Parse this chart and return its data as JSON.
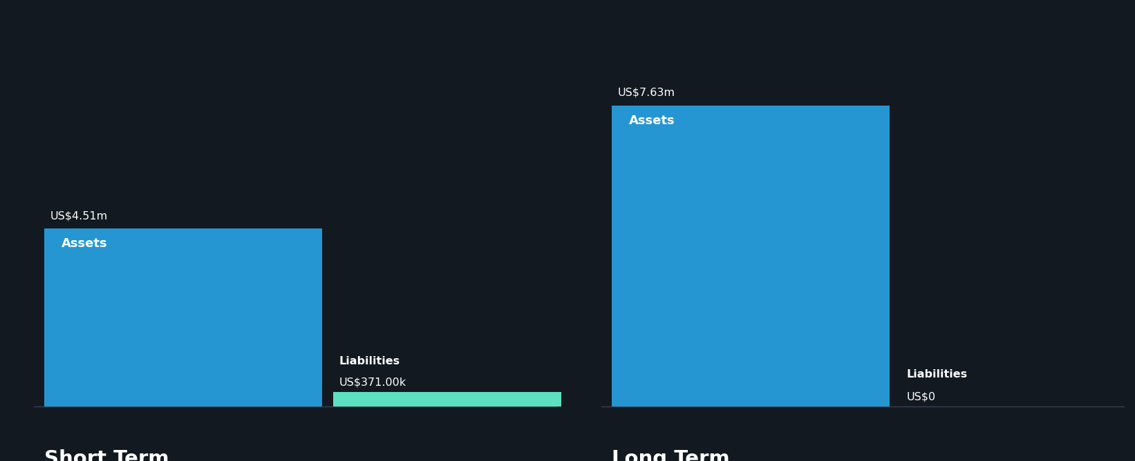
{
  "background_color": "#131920",
  "short_term": {
    "asset_value": 4.51,
    "asset_label": "Assets",
    "asset_value_label": "US$4.51m",
    "asset_color": "#2596d1",
    "liability_value": 0.371,
    "liability_label": "Liabilities",
    "liability_value_label": "US$371.00k",
    "liability_color": "#5de0c0"
  },
  "long_term": {
    "asset_value": 7.63,
    "asset_label": "Assets",
    "asset_value_label": "US$7.63m",
    "asset_color": "#2596d1",
    "liability_value": 0.0,
    "liability_label": "Liabilities",
    "liability_value_label": "US$0",
    "liability_color": "#5de0c0"
  },
  "section_labels": [
    "Short Term",
    "Long Term"
  ],
  "text_color": "#ffffff",
  "axis_line_color": "#3a4050",
  "label_fontsize": 11.5,
  "value_fontsize": 11.5,
  "section_label_fontsize": 21,
  "bar_label_fontsize": 13
}
